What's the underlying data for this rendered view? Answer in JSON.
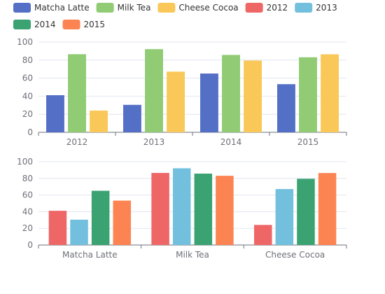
{
  "chart_data": [
    {
      "type": "bar",
      "categories": [
        "2012",
        "2013",
        "2014",
        "2015"
      ],
      "series": [
        {
          "name": "Matcha Latte",
          "values": [
            41.1,
            30.4,
            65.1,
            53.3
          ]
        },
        {
          "name": "Milk Tea",
          "values": [
            86.5,
            92.1,
            85.7,
            83.1
          ]
        },
        {
          "name": "Cheese Cocoa",
          "values": [
            24.1,
            67.2,
            79.5,
            86.4
          ]
        }
      ],
      "ylim": [
        0,
        100
      ],
      "yticks": [
        0,
        20,
        40,
        60,
        80,
        100
      ],
      "grid": true
    },
    {
      "type": "bar",
      "categories": [
        "Matcha Latte",
        "Milk Tea",
        "Cheese Cocoa"
      ],
      "series": [
        {
          "name": "2012",
          "values": [
            41.1,
            86.5,
            24.1
          ]
        },
        {
          "name": "2013",
          "values": [
            30.4,
            92.1,
            67.2
          ]
        },
        {
          "name": "2014",
          "values": [
            65.1,
            85.7,
            79.5
          ]
        },
        {
          "name": "2015",
          "values": [
            53.3,
            83.1,
            86.4
          ]
        }
      ],
      "ylim": [
        0,
        100
      ],
      "yticks": [
        0,
        20,
        40,
        60,
        80,
        100
      ],
      "grid": true
    }
  ],
  "legend": {
    "placement": "top-left",
    "items": [
      {
        "label": "Matcha Latte",
        "color": "#5470c6"
      },
      {
        "label": "Milk Tea",
        "color": "#91cc75"
      },
      {
        "label": "Cheese Cocoa",
        "color": "#fac858"
      },
      {
        "label": "2012",
        "color": "#ee6666"
      },
      {
        "label": "2013",
        "color": "#73c0de"
      },
      {
        "label": "2014",
        "color": "#3ba272"
      },
      {
        "label": "2015",
        "color": "#fc8452"
      }
    ]
  },
  "colors": {
    "Matcha Latte": "#5470c6",
    "Milk Tea": "#91cc75",
    "Cheese Cocoa": "#fac858",
    "2012": "#ee6666",
    "2013": "#73c0de",
    "2014": "#3ba272",
    "2015": "#fc8452"
  }
}
